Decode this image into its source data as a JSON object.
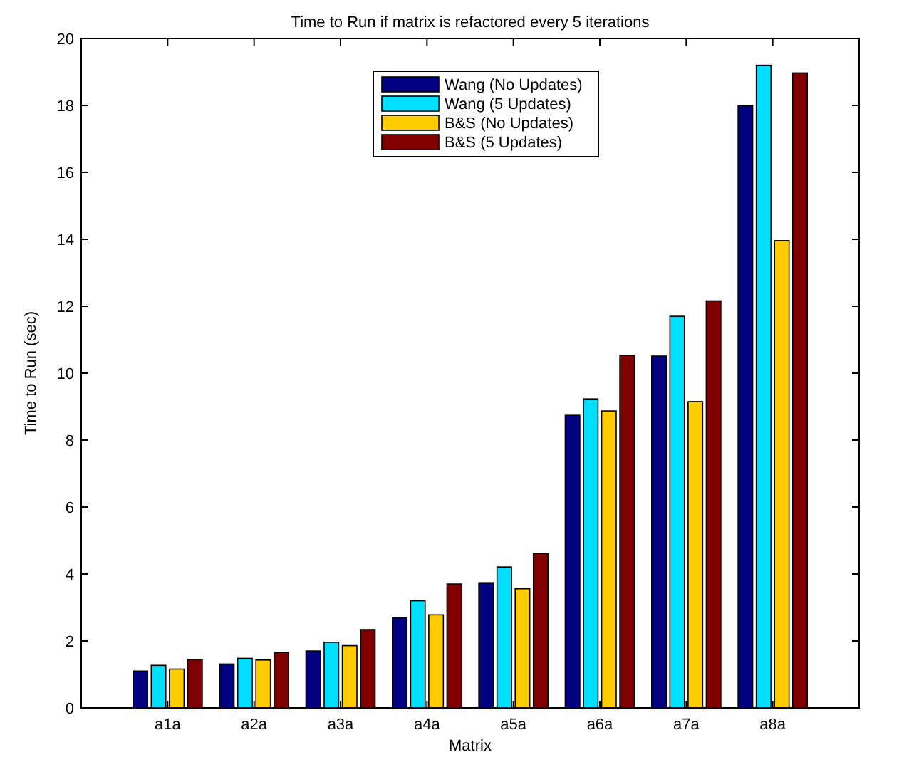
{
  "chart_data": {
    "type": "bar",
    "title": "Time to Run if matrix is refactored every 5 iterations",
    "xlabel": "Matrix",
    "ylabel": "Time to Run (sec)",
    "categories": [
      "a1a",
      "a2a",
      "a3a",
      "a4a",
      "a5a",
      "a6a",
      "a7a",
      "a8a"
    ],
    "series": [
      {
        "name": "Wang (No Updates)",
        "color": "#000080",
        "values": [
          1.1,
          1.31,
          1.7,
          2.69,
          3.74,
          8.74,
          10.51,
          18.0
        ]
      },
      {
        "name": "Wang (5 Updates)",
        "color": "#00dfff",
        "values": [
          1.27,
          1.48,
          1.96,
          3.2,
          4.21,
          9.23,
          11.7,
          19.2
        ]
      },
      {
        "name": "B&S (No Updates)",
        "color": "#ffcc00",
        "values": [
          1.16,
          1.43,
          1.86,
          2.78,
          3.56,
          8.87,
          9.15,
          13.96
        ]
      },
      {
        "name": "B&S (5 Updates)",
        "color": "#800000",
        "values": [
          1.45,
          1.66,
          2.34,
          3.7,
          4.61,
          10.53,
          12.16,
          18.97
        ]
      }
    ],
    "ylim": [
      0,
      20
    ],
    "yticks": [
      0,
      2,
      4,
      6,
      8,
      10,
      12,
      14,
      16,
      18,
      20
    ],
    "grid": false,
    "legend": "top"
  }
}
